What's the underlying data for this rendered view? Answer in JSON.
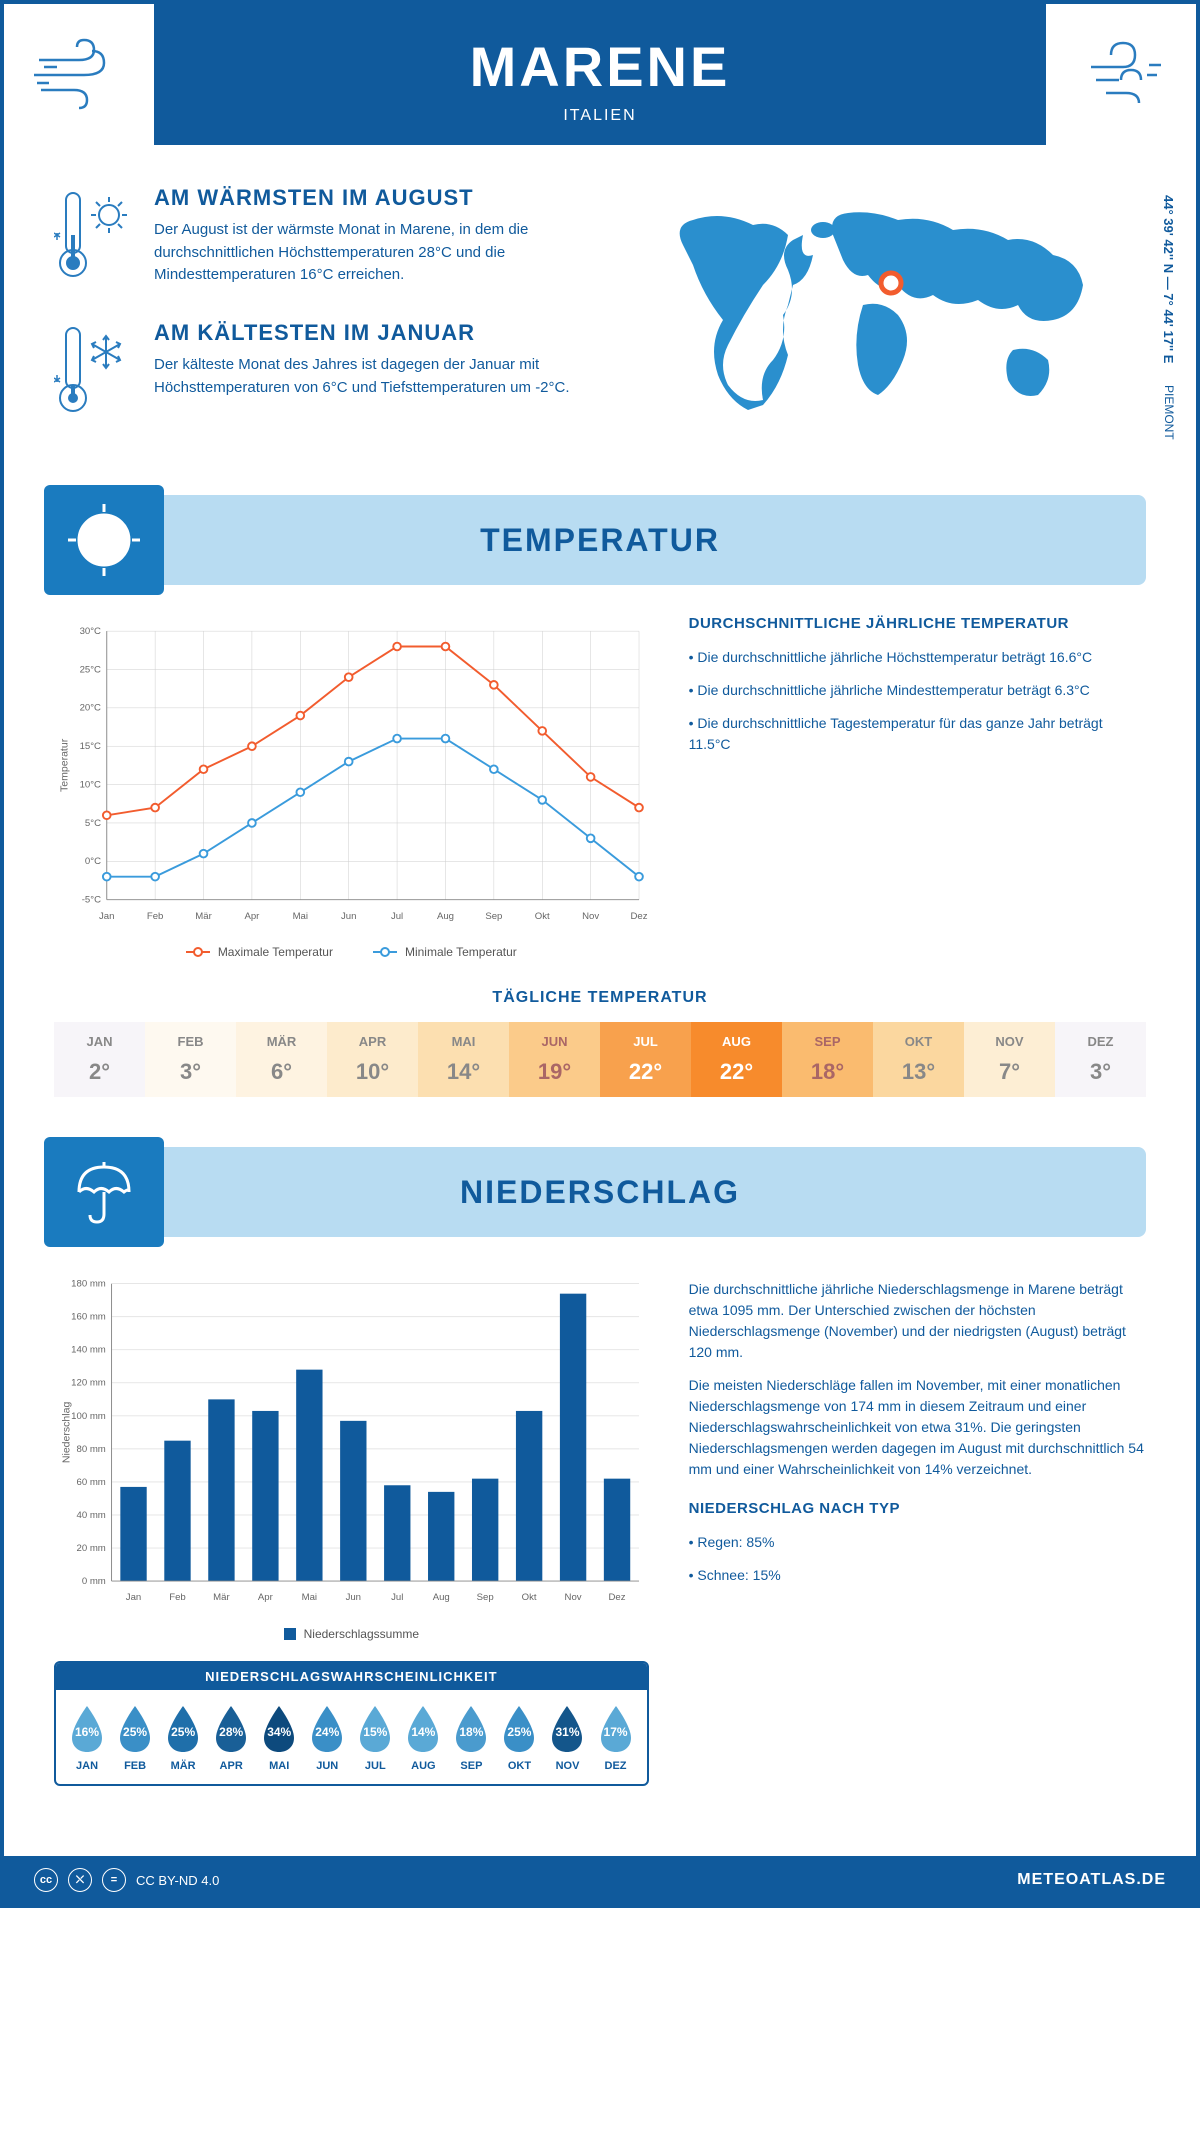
{
  "header": {
    "title": "MARENE",
    "subtitle": "ITALIEN"
  },
  "location": {
    "coords": "44° 39' 42'' N — 7° 44' 17'' E",
    "region": "PIEMONT"
  },
  "warmest": {
    "title": "AM WÄRMSTEN IM AUGUST",
    "text": "Der August ist der wärmste Monat in Marene, in dem die durchschnittlichen Höchsttemperaturen 28°C und die Mindesttemperaturen 16°C erreichen."
  },
  "coldest": {
    "title": "AM KÄLTESTEN IM JANUAR",
    "text": "Der kälteste Monat des Jahres ist dagegen der Januar mit Höchsttemperaturen von 6°C und Tiefsttemperaturen um -2°C."
  },
  "temp_section": {
    "title": "TEMPERATUR",
    "chart": {
      "type": "line",
      "months": [
        "Jan",
        "Feb",
        "Mär",
        "Apr",
        "Mai",
        "Jun",
        "Jul",
        "Aug",
        "Sep",
        "Okt",
        "Nov",
        "Dez"
      ],
      "max_series": {
        "label": "Maximale Temperatur",
        "color": "#f25c2e",
        "values": [
          6,
          7,
          12,
          15,
          19,
          24,
          28,
          28,
          23,
          17,
          11,
          7
        ]
      },
      "min_series": {
        "label": "Minimale Temperatur",
        "color": "#3a9bdc",
        "values": [
          -2,
          -2,
          1,
          5,
          9,
          13,
          16,
          16,
          12,
          8,
          3,
          -2
        ]
      },
      "y_label": "Temperatur",
      "ylim": [
        -5,
        30
      ],
      "ytick_step": 5,
      "ytick_labels": [
        "-5°C",
        "0°C",
        "5°C",
        "10°C",
        "15°C",
        "20°C",
        "25°C",
        "30°C"
      ],
      "grid_color": "#cccccc",
      "axis_color": "#888888"
    },
    "avg": {
      "title": "DURCHSCHNITTLICHE JÄHRLICHE TEMPERATUR",
      "points": [
        "• Die durchschnittliche jährliche Höchsttemperatur beträgt 16.6°C",
        "• Die durchschnittliche jährliche Mindesttemperatur beträgt 6.3°C",
        "• Die durchschnittliche Tagestemperatur für das ganze Jahr beträgt 11.5°C"
      ]
    },
    "daily": {
      "title": "TÄGLICHE TEMPERATUR",
      "months": [
        "JAN",
        "FEB",
        "MÄR",
        "APR",
        "MAI",
        "JUN",
        "JUL",
        "AUG",
        "SEP",
        "OKT",
        "NOV",
        "DEZ"
      ],
      "values": [
        "2°",
        "3°",
        "6°",
        "10°",
        "14°",
        "19°",
        "22°",
        "22°",
        "18°",
        "13°",
        "7°",
        "3°"
      ],
      "bg_colors": [
        "#f7f5f9",
        "#fef9f0",
        "#fef3e1",
        "#fdebcc",
        "#fcdfb0",
        "#fbcb8a",
        "#f8a14d",
        "#f78b2c",
        "#fabb6f",
        "#fbd79f",
        "#fdeed4",
        "#f7f5f9"
      ],
      "text_colors": [
        "#888",
        "#888",
        "#888",
        "#888",
        "#888",
        "#a66",
        "#fff",
        "#fff",
        "#a66",
        "#888",
        "#888",
        "#888"
      ]
    }
  },
  "precip_section": {
    "title": "NIEDERSCHLAG",
    "chart": {
      "type": "bar",
      "months": [
        "Jan",
        "Feb",
        "Mär",
        "Apr",
        "Mai",
        "Jun",
        "Jul",
        "Aug",
        "Sep",
        "Okt",
        "Nov",
        "Dez"
      ],
      "values": [
        57,
        85,
        110,
        103,
        128,
        97,
        58,
        54,
        62,
        103,
        174,
        62
      ],
      "bar_color": "#105a9c",
      "y_label": "Niederschlag",
      "legend": "Niederschlagssumme",
      "ylim": [
        0,
        180
      ],
      "ytick_step": 20,
      "ytick_labels": [
        "0 mm",
        "20 mm",
        "40 mm",
        "60 mm",
        "80 mm",
        "100 mm",
        "120 mm",
        "140 mm",
        "160 mm",
        "180 mm"
      ],
      "grid_color": "#cccccc"
    },
    "text1": "Die durchschnittliche jährliche Niederschlagsmenge in Marene beträgt etwa 1095 mm. Der Unterschied zwischen der höchsten Niederschlagsmenge (November) und der niedrigsten (August) beträgt 120 mm.",
    "text2": "Die meisten Niederschläge fallen im November, mit einer monatlichen Niederschlagsmenge von 174 mm in diesem Zeitraum und einer Niederschlagswahrscheinlichkeit von etwa 31%. Die geringsten Niederschlagsmengen werden dagegen im August mit durchschnittlich 54 mm und einer Wahrscheinlichkeit von 14% verzeichnet.",
    "type_title": "NIEDERSCHLAG NACH TYP",
    "type_points": [
      "• Regen: 85%",
      "• Schnee: 15%"
    ],
    "prob": {
      "title": "NIEDERSCHLAGSWAHRSCHEINLICHKEIT",
      "months": [
        "JAN",
        "FEB",
        "MÄR",
        "APR",
        "MAI",
        "JUN",
        "JUL",
        "AUG",
        "SEP",
        "OKT",
        "NOV",
        "DEZ"
      ],
      "values": [
        "16%",
        "25%",
        "25%",
        "28%",
        "34%",
        "24%",
        "15%",
        "14%",
        "18%",
        "25%",
        "31%",
        "17%"
      ],
      "colors": [
        "#5aa9d6",
        "#3a8fc7",
        "#1f6faa",
        "#195f97",
        "#0d4a7d",
        "#3a8fc7",
        "#5aa9d6",
        "#5aa9d6",
        "#4a9bce",
        "#3a8fc7",
        "#14568b",
        "#5aa9d6"
      ]
    }
  },
  "footer": {
    "license": "CC BY-ND 4.0",
    "site": "METEOATLAS.DE"
  },
  "colors": {
    "primary": "#105a9c",
    "light_blue": "#b8dcf2",
    "accent_blue": "#2a7cbf"
  }
}
